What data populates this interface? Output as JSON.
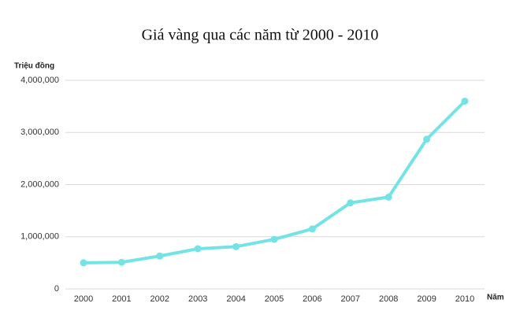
{
  "chart_data": {
    "type": "line",
    "title": "Giá vàng qua các năm từ 2000 - 2010",
    "y_label": "Triệu đồng",
    "x_label": "Năm",
    "categories": [
      "2000",
      "2001",
      "2002",
      "2003",
      "2004",
      "2005",
      "2006",
      "2007",
      "2008",
      "2009",
      "2010"
    ],
    "series": [
      {
        "name": "Giá vàng",
        "color": "#74e3e6",
        "values": [
          500000,
          510000,
          630000,
          770000,
          810000,
          950000,
          1150000,
          1650000,
          1760000,
          2870000,
          3600000
        ]
      }
    ],
    "ylim": [
      0,
      4000000
    ],
    "yticks": [
      0,
      {
        "value": 1000000,
        "label": "1,000,000"
      },
      {
        "value": 2000000,
        "label": "2,000,000"
      },
      {
        "value": 3000000,
        "label": "3,000,000"
      },
      {
        "value": 4000000,
        "label": "4,000,000"
      }
    ],
    "grid": true
  }
}
